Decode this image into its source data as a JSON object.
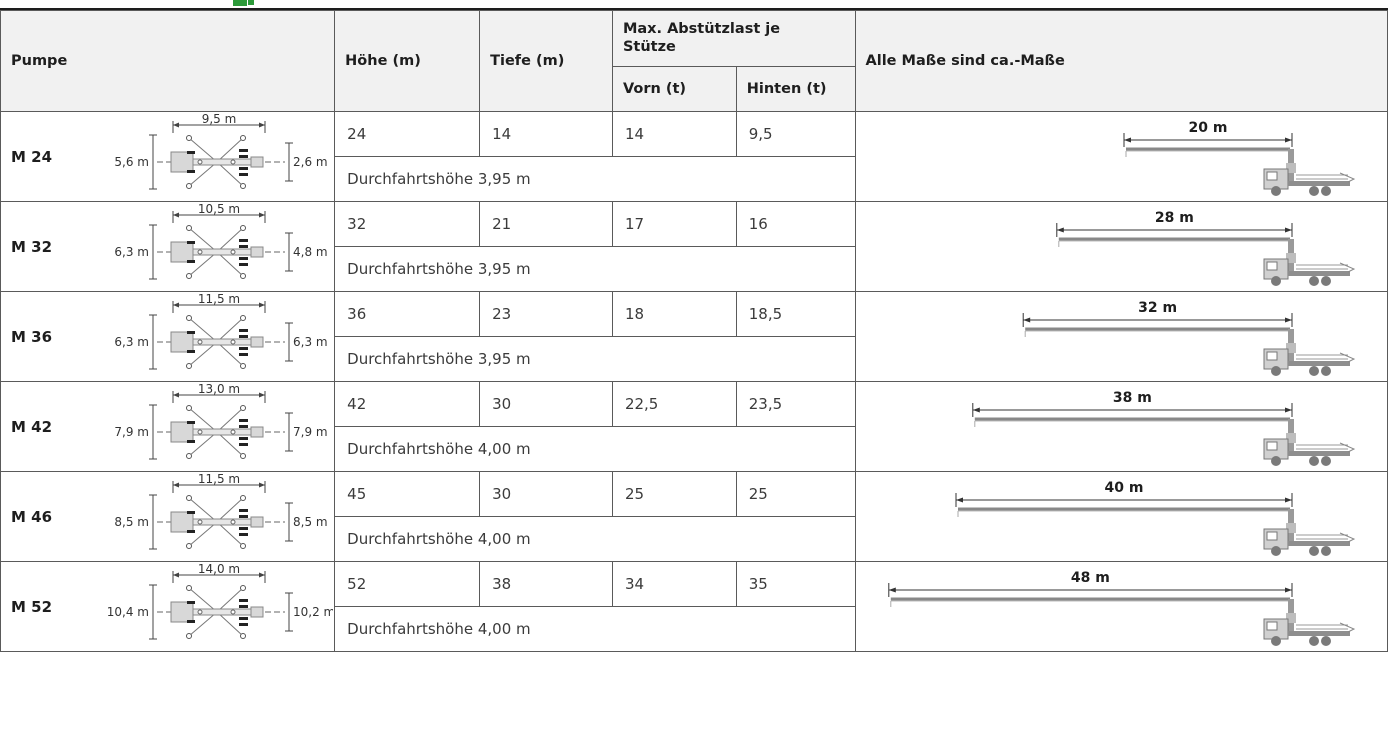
{
  "header": {
    "pumpe": "Pumpe",
    "hoehe": "Höhe (m)",
    "tiefe": "Tiefe (m)",
    "maxload": "Max. Abstützlast je Stütze",
    "vorn": "Vorn (t)",
    "hinten": "Hinten (t)",
    "note": "Alle Maße sind ca.-Maße"
  },
  "rows": [
    {
      "name": "M 24",
      "width": "9,5 m",
      "left": "5,6 m",
      "right": "2,6 m",
      "hoehe": "24",
      "tiefe": "14",
      "vorn": "14",
      "hinten": "9,5",
      "durchfahrt": "Durchfahrtshöhe 3,95 m",
      "boom": "20 m"
    },
    {
      "name": "M 32",
      "width": "10,5 m",
      "left": "6,3 m",
      "right": "4,8 m",
      "hoehe": "32",
      "tiefe": "21",
      "vorn": "17",
      "hinten": "16",
      "durchfahrt": "Durchfahrtshöhe 3,95 m",
      "boom": "28 m"
    },
    {
      "name": "M 36",
      "width": "11,5 m",
      "left": "6,3 m",
      "right": "6,3 m",
      "hoehe": "36",
      "tiefe": "23",
      "vorn": "18",
      "hinten": "18,5",
      "durchfahrt": "Durchfahrtshöhe 3,95 m",
      "boom": "32 m"
    },
    {
      "name": "M 42",
      "width": "13,0 m",
      "left": "7,9 m",
      "right": "7,9 m",
      "hoehe": "42",
      "tiefe": "30",
      "vorn": "22,5",
      "hinten": "23,5",
      "durchfahrt": "Durchfahrtshöhe 4,00 m",
      "boom": "38 m"
    },
    {
      "name": "M 46",
      "width": "11,5 m",
      "left": "8,5 m",
      "right": "8,5 m",
      "hoehe": "45",
      "tiefe": "30",
      "vorn": "25",
      "hinten": "25",
      "durchfahrt": "Durchfahrtshöhe 4,00 m",
      "boom": "40 m"
    },
    {
      "name": "M 52",
      "width": "14,0 m",
      "left": "10,4 m",
      "right": "10,2 m",
      "hoehe": "52",
      "tiefe": "38",
      "vorn": "34",
      "hinten": "35",
      "durchfahrt": "Durchfahrtshöhe 4,00 m",
      "boom": "48 m"
    }
  ],
  "icons": {
    "outrigger": "outrigger-footprint-diagram",
    "truck": "concrete-pump-truck-icon"
  }
}
